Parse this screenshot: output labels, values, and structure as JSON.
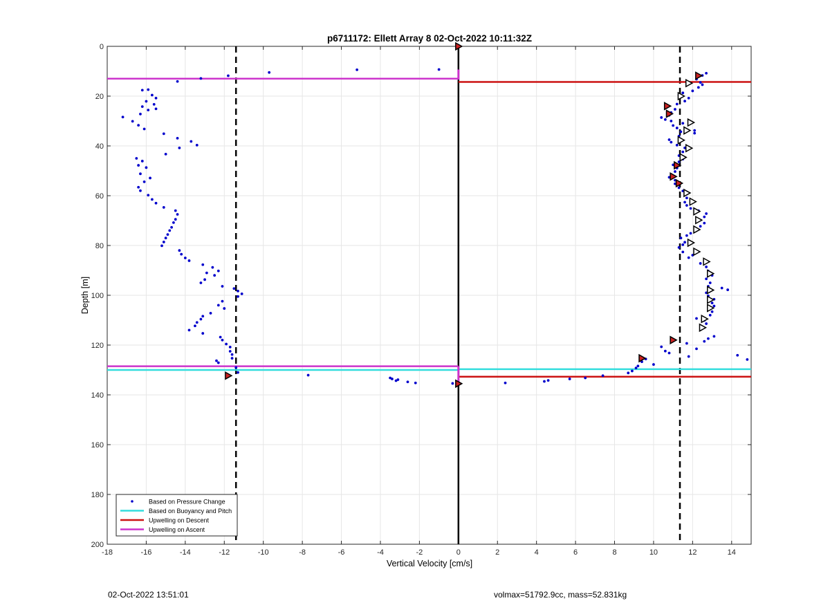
{
  "footer": {
    "timestamp": "02-Oct-2022 13:51:01",
    "info": "volmax=51792.9cc, mass=52.831kg"
  },
  "chart_data": {
    "type": "scatter",
    "title": "p6711172: Ellett Array 8 02-Oct-2022 10:11:32Z",
    "xlabel": "Vertical Velocity [cm/s]",
    "ylabel": "Depth [m]",
    "xlim": [
      -18,
      15
    ],
    "ylim": [
      0,
      200
    ],
    "y_reversed": true,
    "xticks": [
      -18,
      -16,
      -14,
      -12,
      -10,
      -8,
      -6,
      -4,
      -2,
      0,
      2,
      4,
      6,
      8,
      10,
      12,
      14
    ],
    "yticks": [
      0,
      20,
      40,
      60,
      80,
      100,
      120,
      140,
      160,
      180,
      200
    ],
    "grid": true,
    "legend_position": "bottom-left",
    "colors": {
      "pressure": "#0000cc",
      "buoyancy": "#33dddd",
      "descent": "#cc1111",
      "ascent": "#cc33cc",
      "marker_fill": "#cc2222"
    },
    "legend": [
      {
        "label": "Based on Pressure Change",
        "style": "dot",
        "color": "#0000cc"
      },
      {
        "label": "Based on Buoyancy and Pitch",
        "style": "line",
        "color": "#33dddd"
      },
      {
        "label": "Upwelling on Descent",
        "style": "line",
        "color": "#cc1111"
      },
      {
        "label": "Upwelling on Ascent",
        "style": "line",
        "color": "#cc33cc"
      }
    ],
    "reference_lines": {
      "zero_line_x": 0,
      "dashed_x": [
        -11.4,
        11.35
      ]
    },
    "upwelling_ascent": [
      {
        "x": [
          -18,
          0
        ],
        "y": 13
      },
      {
        "x": [
          -18,
          0
        ],
        "y": 128.5
      }
    ],
    "upwelling_descent": [
      {
        "x": [
          0,
          15
        ],
        "y": 14.3
      },
      {
        "x": [
          0,
          15
        ],
        "y": 132.7
      }
    ],
    "buoyancy_pitch": [
      {
        "x": [
          -18,
          0
        ],
        "y": 130
      },
      {
        "x": [
          0,
          15
        ],
        "y": 129.7
      }
    ],
    "pressure_series": [
      [
        -13.2,
        12.9
      ],
      [
        -14.4,
        14.1
      ],
      [
        -11.8,
        11.8
      ],
      [
        -9.7,
        10.5
      ],
      [
        -5.2,
        9.4
      ],
      [
        -1.0,
        9.3
      ],
      [
        -16.2,
        17.6
      ],
      [
        -15.9,
        17.4
      ],
      [
        -15.7,
        19.6
      ],
      [
        -15.5,
        20.8
      ],
      [
        -16.0,
        22.1
      ],
      [
        -15.6,
        23.3
      ],
      [
        -16.2,
        24.2
      ],
      [
        -15.9,
        25.6
      ],
      [
        -15.5,
        25.1
      ],
      [
        -16.3,
        27.2
      ],
      [
        -17.2,
        28.4
      ],
      [
        -16.7,
        30.1
      ],
      [
        -16.4,
        31.7
      ],
      [
        -16.1,
        33.2
      ],
      [
        -15.1,
        35.1
      ],
      [
        -14.4,
        36.9
      ],
      [
        -13.7,
        38.2
      ],
      [
        -13.4,
        39.7
      ],
      [
        -14.3,
        40.8
      ],
      [
        -15.0,
        43.3
      ],
      [
        -16.5,
        45.0
      ],
      [
        -16.2,
        46.1
      ],
      [
        -16.4,
        47.8
      ],
      [
        -16.0,
        48.7
      ],
      [
        -16.3,
        51.2
      ],
      [
        -15.8,
        52.9
      ],
      [
        -16.1,
        54.4
      ],
      [
        -16.4,
        56.6
      ],
      [
        -16.3,
        58.0
      ],
      [
        -15.9,
        59.8
      ],
      [
        -15.7,
        61.5
      ],
      [
        -15.5,
        63.0
      ],
      [
        -15.1,
        64.7
      ],
      [
        -14.5,
        66.0
      ],
      [
        -14.4,
        67.5
      ],
      [
        -14.5,
        69.5
      ],
      [
        -14.6,
        70.8
      ],
      [
        -14.7,
        72.7
      ],
      [
        -14.8,
        74.0
      ],
      [
        -14.9,
        75.6
      ],
      [
        -15.0,
        77.0
      ],
      [
        -15.1,
        78.6
      ],
      [
        -15.2,
        80.1
      ],
      [
        -14.3,
        82.0
      ],
      [
        -14.2,
        83.5
      ],
      [
        -14.0,
        85.0
      ],
      [
        -13.8,
        86.1
      ],
      [
        -13.1,
        87.7
      ],
      [
        -12.6,
        88.8
      ],
      [
        -12.3,
        90.2
      ],
      [
        -12.9,
        91.0
      ],
      [
        -12.5,
        92.0
      ],
      [
        -13.0,
        93.7
      ],
      [
        -13.2,
        95.0
      ],
      [
        -12.1,
        96.4
      ],
      [
        -11.5,
        97.3
      ],
      [
        -11.3,
        98.3
      ],
      [
        -11.1,
        99.4
      ],
      [
        -11.3,
        100.5
      ],
      [
        -12.1,
        102.4
      ],
      [
        -12.3,
        104.0
      ],
      [
        -12.0,
        105.3
      ],
      [
        -12.7,
        107.2
      ],
      [
        -13.1,
        108.4
      ],
      [
        -13.2,
        109.6
      ],
      [
        -13.4,
        110.9
      ],
      [
        -13.5,
        112.3
      ],
      [
        -13.8,
        114.0
      ],
      [
        -13.1,
        115.3
      ],
      [
        -12.2,
        116.8
      ],
      [
        -12.1,
        118.0
      ],
      [
        -11.9,
        119.6
      ],
      [
        -11.7,
        120.8
      ],
      [
        -11.7,
        122.5
      ],
      [
        -11.6,
        123.8
      ],
      [
        -11.6,
        125.3
      ],
      [
        -12.4,
        126.3
      ],
      [
        -12.3,
        127.1
      ],
      [
        -11.4,
        129.0
      ],
      [
        -11.3,
        131.0
      ],
      [
        -11.8,
        132.3
      ],
      [
        -7.7,
        132.1
      ],
      [
        -3.5,
        133.2
      ],
      [
        -3.4,
        133.6
      ],
      [
        -3.1,
        133.9
      ],
      [
        -3.2,
        134.3
      ],
      [
        -2.6,
        134.8
      ],
      [
        -2.2,
        135.2
      ],
      [
        -0.3,
        135.4
      ],
      [
        2.4,
        135.2
      ],
      [
        4.4,
        134.6
      ],
      [
        4.6,
        134.2
      ],
      [
        5.7,
        133.6
      ],
      [
        6.5,
        133.2
      ],
      [
        7.4,
        132.3
      ],
      [
        8.7,
        131.2
      ],
      [
        8.9,
        130.4
      ],
      [
        9.1,
        129.2
      ],
      [
        9.2,
        128.4
      ],
      [
        9.4,
        126.7
      ],
      [
        9.6,
        125.6
      ],
      [
        10.0,
        127.8
      ],
      [
        10.4,
        120.7
      ],
      [
        10.6,
        122.4
      ],
      [
        10.8,
        123.2
      ],
      [
        11.7,
        119.3
      ],
      [
        11.8,
        124.6
      ],
      [
        12.2,
        121.5
      ],
      [
        12.5,
        113.2
      ],
      [
        12.6,
        118.5
      ],
      [
        12.8,
        117.4
      ],
      [
        13.1,
        116.5
      ],
      [
        14.3,
        124.1
      ],
      [
        14.8,
        125.8
      ],
      [
        12.2,
        109.3
      ],
      [
        12.6,
        110.1
      ],
      [
        12.7,
        111.4
      ],
      [
        12.9,
        108.0
      ],
      [
        13.0,
        106.6
      ],
      [
        13.1,
        104.3
      ],
      [
        13.0,
        103.1
      ],
      [
        13.1,
        101.6
      ],
      [
        12.8,
        100.2
      ],
      [
        12.7,
        99.0
      ],
      [
        13.5,
        97.1
      ],
      [
        13.8,
        97.8
      ],
      [
        12.8,
        96.4
      ],
      [
        12.9,
        95.0
      ],
      [
        12.7,
        93.4
      ],
      [
        13.0,
        92.0
      ],
      [
        12.8,
        90.2
      ],
      [
        12.7,
        88.6
      ],
      [
        12.4,
        87.2
      ],
      [
        12.0,
        83.9
      ],
      [
        11.8,
        84.9
      ],
      [
        11.5,
        82.6
      ],
      [
        11.3,
        80.8
      ],
      [
        11.5,
        79.7
      ],
      [
        11.6,
        78.7
      ],
      [
        11.4,
        77.0
      ],
      [
        11.7,
        76.0
      ],
      [
        11.9,
        75.1
      ],
      [
        12.2,
        73.7
      ],
      [
        12.4,
        72.3
      ],
      [
        12.6,
        71.0
      ],
      [
        12.4,
        69.8
      ],
      [
        12.6,
        68.5
      ],
      [
        12.7,
        67.2
      ],
      [
        12.3,
        66.0
      ],
      [
        11.9,
        65.1
      ],
      [
        11.7,
        63.9
      ],
      [
        11.6,
        62.6
      ],
      [
        11.7,
        60.9
      ],
      [
        11.7,
        59.3
      ],
      [
        11.5,
        58.1
      ],
      [
        11.3,
        56.8
      ],
      [
        11.1,
        55.2
      ],
      [
        11.1,
        53.8
      ],
      [
        10.8,
        52.6
      ],
      [
        10.9,
        51.5
      ],
      [
        11.1,
        50.3
      ],
      [
        11.2,
        48.9
      ],
      [
        11.0,
        47.6
      ],
      [
        11.3,
        46.4
      ],
      [
        11.5,
        45.3
      ],
      [
        11.3,
        43.9
      ],
      [
        11.5,
        42.4
      ],
      [
        11.6,
        40.8
      ],
      [
        11.2,
        39.7
      ],
      [
        10.9,
        38.5
      ],
      [
        10.8,
        37.5
      ],
      [
        11.3,
        36.1
      ],
      [
        11.4,
        34.3
      ],
      [
        12.1,
        34.9
      ],
      [
        12.1,
        33.8
      ],
      [
        11.2,
        32.8
      ],
      [
        11.0,
        31.8
      ],
      [
        11.5,
        30.9
      ],
      [
        10.9,
        30.0
      ],
      [
        10.6,
        29.4
      ],
      [
        10.4,
        28.6
      ],
      [
        10.8,
        27.7
      ],
      [
        10.9,
        26.6
      ],
      [
        11.1,
        25.3
      ],
      [
        10.7,
        24.4
      ],
      [
        11.2,
        23.2
      ],
      [
        11.6,
        22.0
      ],
      [
        11.8,
        20.8
      ],
      [
        11.3,
        19.6
      ],
      [
        11.5,
        18.7
      ],
      [
        12.0,
        17.9
      ],
      [
        12.3,
        16.5
      ],
      [
        12.5,
        15.4
      ],
      [
        12.4,
        14.5
      ],
      [
        12.2,
        13.2
      ],
      [
        12.5,
        11.7
      ],
      [
        12.7,
        10.8
      ]
    ],
    "solid_markers": [
      [
        0,
        0
      ],
      [
        12.3,
        11.8
      ],
      [
        10.7,
        24.0
      ],
      [
        10.8,
        27.1
      ],
      [
        11.2,
        47.8
      ],
      [
        11.0,
        52.3
      ],
      [
        11.3,
        55.0
      ],
      [
        11.0,
        118.0
      ],
      [
        9.4,
        125.3
      ],
      [
        -11.8,
        132.3
      ],
      [
        0,
        135.5
      ]
    ],
    "open_markers": [
      [
        11.8,
        14.8
      ],
      [
        11.4,
        20.0
      ],
      [
        11.9,
        30.6
      ],
      [
        11.7,
        33.8
      ],
      [
        11.4,
        37.7
      ],
      [
        11.8,
        40.9
      ],
      [
        11.5,
        44.6
      ],
      [
        11.7,
        58.9
      ],
      [
        12.0,
        62.4
      ],
      [
        12.2,
        66.3
      ],
      [
        12.3,
        69.8
      ],
      [
        12.2,
        73.6
      ],
      [
        11.9,
        78.9
      ],
      [
        12.2,
        82.5
      ],
      [
        12.7,
        86.5
      ],
      [
        12.9,
        91.3
      ],
      [
        12.9,
        97.9
      ],
      [
        12.9,
        101.8
      ],
      [
        12.9,
        105.1
      ],
      [
        12.6,
        109.5
      ],
      [
        12.5,
        113.0
      ]
    ],
    "ascent_bar_x": 0,
    "ascent_bar_ranges": [
      [
        9.3,
        13.4
      ],
      [
        128.5,
        136.0
      ]
    ]
  }
}
